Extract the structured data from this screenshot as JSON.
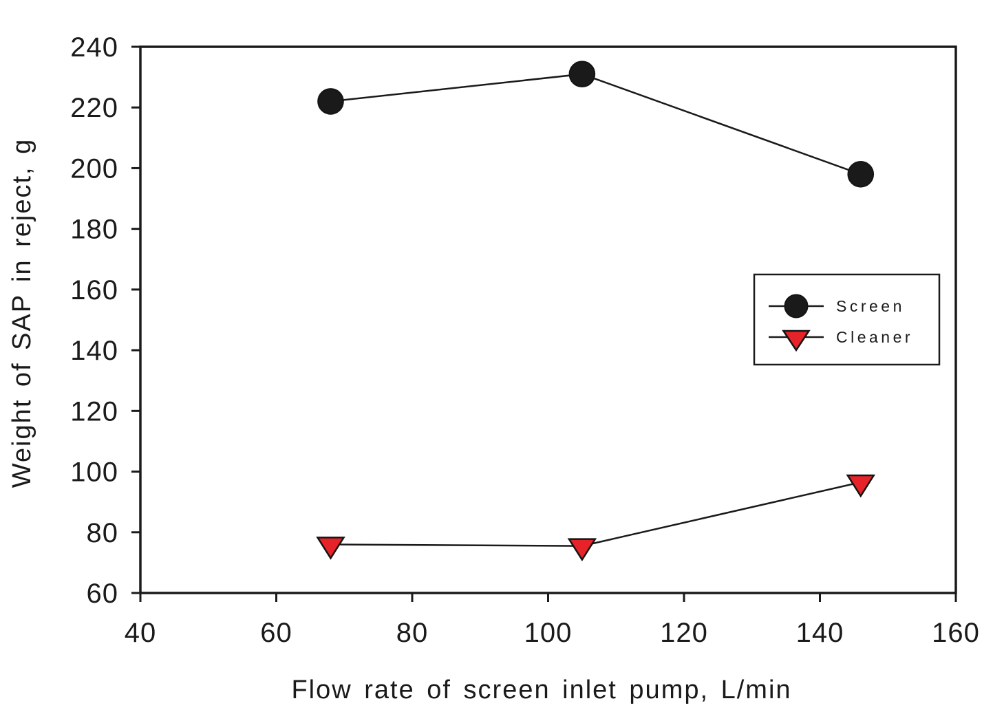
{
  "chart_data": {
    "type": "line",
    "title": "",
    "xlabel": "Flow rate of screen inlet pump, L/min",
    "ylabel": "Weight of SAP in reject, g",
    "xlim": [
      40,
      160
    ],
    "ylim": [
      60,
      240
    ],
    "xticks": [
      40,
      60,
      80,
      100,
      120,
      140,
      160
    ],
    "yticks": [
      60,
      80,
      100,
      120,
      140,
      160,
      180,
      200,
      220,
      240
    ],
    "grid": false,
    "legend": {
      "position": "center-right",
      "border": true,
      "items": [
        "Screen",
        "Cleaner"
      ]
    },
    "colors": {
      "axis": "#1a1a1a",
      "line": "#1a1a1a",
      "screen_marker_fill": "#1a1a1a",
      "cleaner_marker_fill": "#e62329",
      "marker_outline": "#141414"
    },
    "series": [
      {
        "name": "Screen",
        "marker": "circle",
        "x": [
          68,
          105,
          146
        ],
        "y": [
          222,
          231,
          198
        ]
      },
      {
        "name": "Cleaner",
        "marker": "triangle-down",
        "x": [
          68,
          105,
          146
        ],
        "y": [
          76,
          75.5,
          96.5
        ]
      }
    ]
  }
}
